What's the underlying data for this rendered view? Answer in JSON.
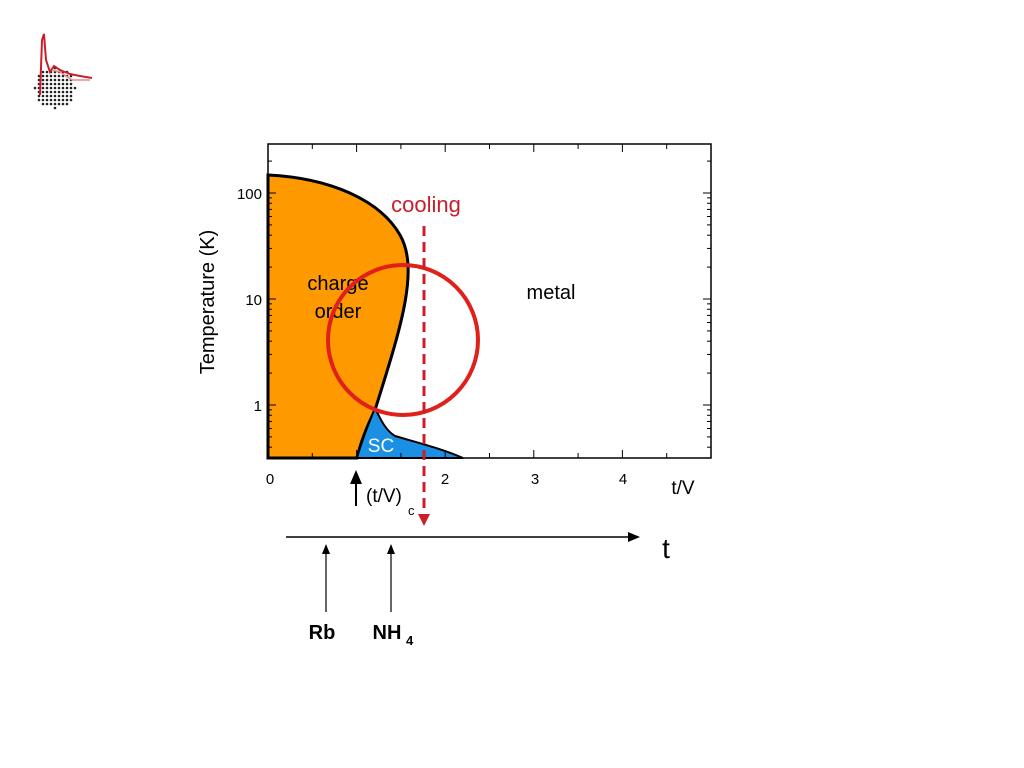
{
  "chart_data": {
    "type": "phase-diagram",
    "xlabel": "t/V",
    "ylabel": "Temperature (K)",
    "y_scale": "log",
    "x_ticks": [
      "0",
      "2",
      "3",
      "4"
    ],
    "y_ticks": [
      "1",
      "10",
      "100"
    ],
    "regions": [
      {
        "name": "charge_order",
        "label_line1": "charge",
        "label_line2": "order",
        "color": "#ff9900"
      },
      {
        "name": "metal",
        "label": "metal",
        "color": "#ffffff"
      },
      {
        "name": "sc",
        "label": "SC",
        "color": "#1a8fe3"
      }
    ],
    "charge_order_boundary": {
      "t_over_V": [
        0.0,
        0.6,
        1.0,
        1.3,
        1.55,
        1.6,
        1.5,
        1.3,
        1.2
      ],
      "temperature_K": [
        140,
        120,
        80,
        40,
        15,
        8,
        3,
        1.5,
        1.0
      ]
    },
    "sc_boundary": {
      "t_over_V": [
        1.0,
        1.1,
        1.2,
        1.35,
        1.55,
        1.9,
        2.2
      ],
      "temperature_K": [
        0.3,
        0.6,
        0.9,
        0.6,
        0.5,
        0.38,
        0.3
      ]
    },
    "annotations": {
      "cooling_label": "cooling",
      "critical_label": "(t/V)",
      "critical_sub": "c",
      "critical_t_over_V": 1.0,
      "cooling_t_over_V": 1.8
    }
  },
  "axis_below": {
    "t_label": "t",
    "compounds": [
      {
        "label": "Rb",
        "sub": ""
      },
      {
        "label": "NH",
        "sub": "4"
      }
    ]
  },
  "colors": {
    "accent_red": "#d92020",
    "charge_order": "#ff9900",
    "sc": "#1a8fe3"
  }
}
